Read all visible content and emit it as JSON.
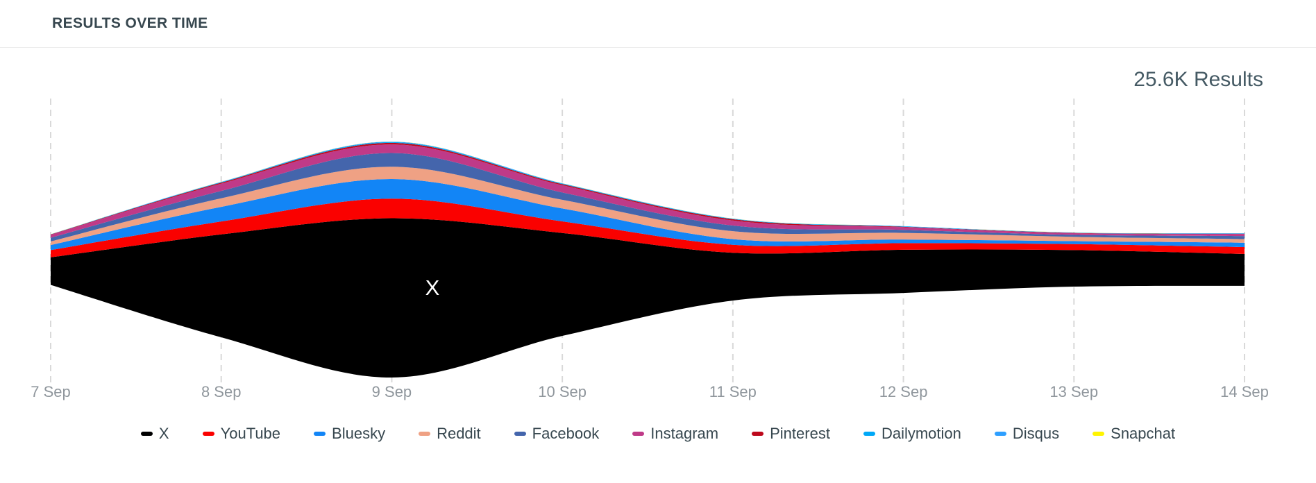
{
  "header": {
    "title": "RESULTS OVER TIME"
  },
  "summary": {
    "results_count": "25.6K Results"
  },
  "stream_label": "X",
  "chart_data": {
    "type": "area",
    "variant": "streamgraph",
    "title": "RESULTS OVER TIME",
    "total_annotation": "25.6K Results",
    "unit": "results",
    "grid": "vertical-dashed",
    "legend_position": "bottom",
    "x_labels": [
      "7 Sep",
      "8 Sep",
      "9 Sep",
      "10 Sep",
      "11 Sep",
      "12 Sep",
      "13 Sep",
      "14 Sep"
    ],
    "series": [
      {
        "name": "X",
        "color": "#000000",
        "values": [
          830,
          3100,
          4800,
          3100,
          1440,
          1300,
          1100,
          960
        ]
      },
      {
        "name": "YouTube",
        "color": "#fa0100",
        "values": [
          220,
          390,
          590,
          350,
          240,
          200,
          180,
          210
        ]
      },
      {
        "name": "Bluesky",
        "color": "#1285f6",
        "values": [
          150,
          440,
          590,
          390,
          170,
          110,
          90,
          130
        ]
      },
      {
        "name": "Reddit",
        "color": "#efa184",
        "values": [
          110,
          260,
          370,
          260,
          240,
          200,
          130,
          110
        ]
      },
      {
        "name": "Facebook",
        "color": "#4465ac",
        "values": [
          110,
          220,
          415,
          220,
          170,
          90,
          60,
          90
        ]
      },
      {
        "name": "Instagram",
        "color": "#bf3a88",
        "values": [
          90,
          220,
          260,
          220,
          150,
          80,
          50,
          65
        ]
      },
      {
        "name": "Pinterest",
        "color": "#bd081c",
        "values": [
          10,
          30,
          45,
          30,
          40,
          15,
          8,
          6
        ]
      },
      {
        "name": "Dailymotion",
        "color": "#00a8f7",
        "values": [
          5,
          15,
          25,
          20,
          15,
          12,
          8,
          10
        ]
      },
      {
        "name": "Disqus",
        "color": "#2e9fff",
        "values": [
          2,
          8,
          12,
          8,
          5,
          4,
          3,
          5
        ]
      },
      {
        "name": "Snapchat",
        "color": "#fff400",
        "values": [
          0,
          2,
          3,
          2,
          1,
          1,
          1,
          1
        ]
      }
    ]
  },
  "colors": {
    "title": "#37474f",
    "annotation": "#455a64",
    "axis_text": "#8f969c",
    "legend_text": "#37474f",
    "gridline": "#d9d9d9",
    "background": "#ffffff",
    "header_border": "#ececec"
  }
}
